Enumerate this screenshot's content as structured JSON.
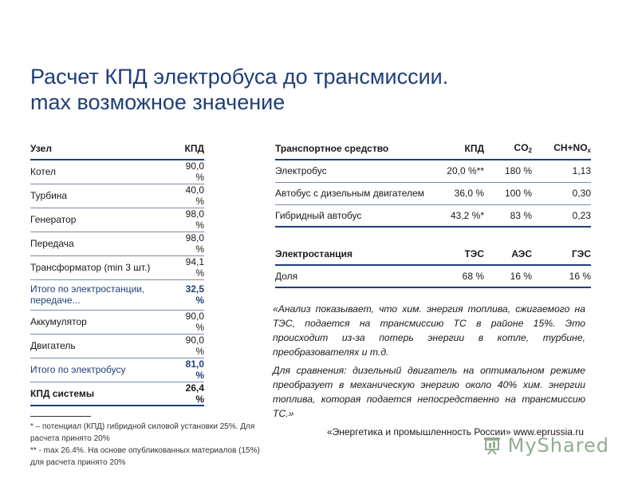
{
  "title": {
    "line1": "Расчет КПД электробуса до трансмиссии.",
    "line2": "max возможное значение"
  },
  "left_table": {
    "headers": [
      "Узел",
      "КПД"
    ],
    "rows": [
      {
        "name": "Котел",
        "value": "90,0 %"
      },
      {
        "name": "Турбина",
        "value": "40,0 %"
      },
      {
        "name": "Генератор",
        "value": "98,0 %"
      },
      {
        "name": "Передача",
        "value": "98,0 %"
      },
      {
        "name": "Трансформатор (min 3 шт.)",
        "value": "94,1 %"
      },
      {
        "name": "Итого по электростанции, передаче...",
        "value": "32,5 %"
      },
      {
        "name": "Аккумулятор",
        "value": "90,0 %"
      },
      {
        "name": "Двигатель",
        "value": "90,0 %"
      },
      {
        "name": "Итого по электробусу",
        "value": "81,0 %"
      },
      {
        "name": "КПД системы",
        "value": "26,4 %"
      }
    ]
  },
  "transport_table": {
    "headers": {
      "vehicle": "Транспортное средство",
      "kpd": "КПД",
      "co2": "CO",
      "co2_sub": "2",
      "chno": "CH+NO",
      "chno_sub": "x"
    },
    "rows": [
      {
        "vehicle": "Электробус",
        "kpd": "20,0 %**",
        "co2": "180 %",
        "chno": "1,13"
      },
      {
        "vehicle": "Автобус с дизельным двигателем",
        "kpd": "36,0 %",
        "co2": "100 %",
        "chno": "0,30"
      },
      {
        "vehicle": "Гибридный автобус",
        "kpd": "43,2 %*",
        "co2": "83 %",
        "chno": "0,23"
      }
    ]
  },
  "station_table": {
    "headers": [
      "Электростанция",
      "ТЭС",
      "АЭС",
      "ГЭС"
    ],
    "row": {
      "label": "Доля",
      "tes": "68 %",
      "aes": "16 %",
      "ges": "16 %"
    }
  },
  "analysis": {
    "p1": "«Анализ показывает, что хим. энергия топлива, сжигаемого на ТЭС, подается на трансмиссию ТС в районе 15%. Это происходит из-за потерь энергии в котле, турбине, преобразователях и т.д.",
    "p2": "Для сравнения: дизельный двигатель на оптимальном режиме преобразует в механическую энергию около 40% хим. энергии топлива, которая подается непосредственно на трансмиссию ТС.»"
  },
  "source": "«Энергетика и промышленность России» www.eprussia.ru",
  "footnotes": {
    "f1": "* – потенциал (КПД) гибридной силовой установки 25%. Для расчета принято 20%",
    "f2": "** - max 26.4%. На основе опубликованных материалов (15%) для расчета принято 20%"
  },
  "watermark": {
    "text": "MyShared"
  }
}
